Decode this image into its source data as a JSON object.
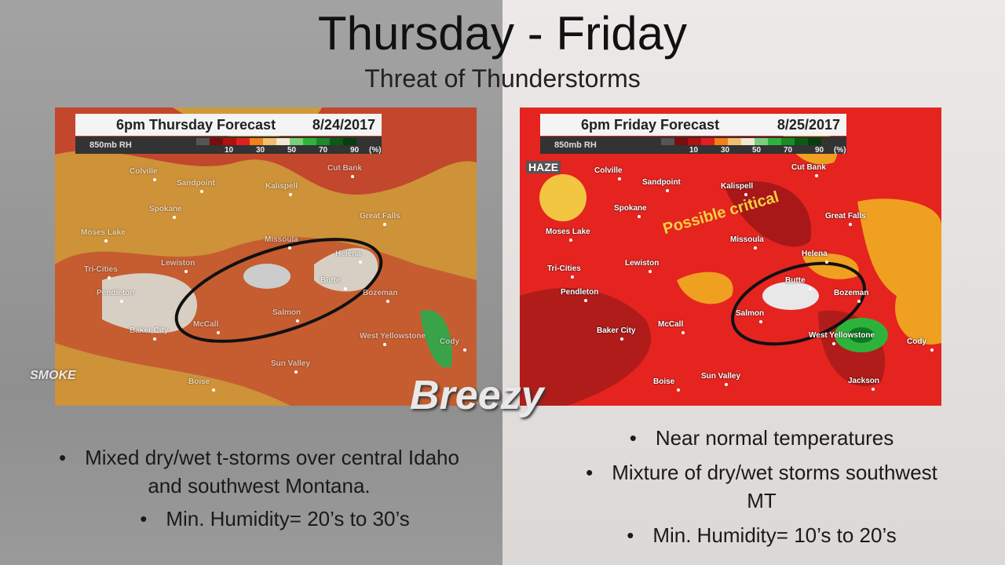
{
  "header": {
    "title": "Thursday - Friday",
    "subtitle": "Threat of Thunderstorms"
  },
  "panels": [
    {
      "map_title": "6pm Thursday Forecast",
      "date": "8/24/2017",
      "variable": "850mb RH",
      "legend_ticks": [
        "10",
        "30",
        "50",
        "70",
        "90"
      ],
      "legend_unit": "(%)",
      "cities": [
        "Colville",
        "Sandpoint",
        "Kalispell",
        "Cut Bank",
        "Spokane",
        "Great Falls",
        "Moses Lake",
        "Missoula",
        "Lewiston",
        "Tri-Cities",
        "Helena",
        "Pendleton",
        "Butte",
        "Bozeman",
        "Baker City",
        "McCall",
        "Salmon",
        "West Yellowstone",
        "Cody",
        "Boise",
        "Sun Valley"
      ],
      "annotations": [
        "SMOKE",
        "Breezy"
      ],
      "bullets": [
        "Mixed dry/wet t-storms over central Idaho and southwest Montana.",
        "Min. Humidity= 20’s to 30’s"
      ]
    },
    {
      "map_title": "6pm Friday Forecast",
      "date": "8/25/2017",
      "variable": "850mb RH",
      "legend_ticks": [
        "10",
        "30",
        "50",
        "70",
        "90"
      ],
      "legend_unit": "(%)",
      "cities": [
        "Colville",
        "Sandpoint",
        "Kalispell",
        "Cut Bank",
        "Spokane",
        "Great Falls",
        "Moses Lake",
        "Missoula",
        "Lewiston",
        "Tri-Cities",
        "Helena",
        "Pendleton",
        "Butte",
        "Bozeman",
        "Baker City",
        "McCall",
        "Salmon",
        "West Yellowstone",
        "Cody",
        "Jackson",
        "Boise",
        "Sun Valley"
      ],
      "annotations": [
        "HAZE",
        "Possible critical"
      ],
      "bullets": [
        "Near normal temperatures",
        "Mixture of dry/wet storms southwest MT",
        "Min. Humidity= 10’s to 20’s"
      ]
    }
  ]
}
